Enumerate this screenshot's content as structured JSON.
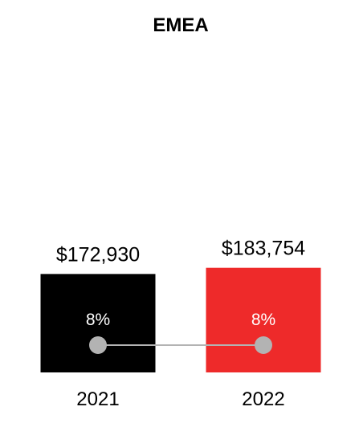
{
  "chart_data": {
    "type": "bar",
    "title": "EMEA",
    "categories": [
      "2021",
      "2022"
    ],
    "values": [
      172930,
      183754
    ],
    "value_labels": [
      "$172,930",
      "$183,754"
    ],
    "secondary": {
      "type": "line",
      "values": [
        8,
        8
      ],
      "labels": [
        "8%",
        "8%"
      ],
      "color": "#b3b3b3"
    },
    "bar_colors": [
      "#000000",
      "#ee2a2a"
    ],
    "ylim": [
      0,
      1200000
    ],
    "grid": false,
    "legend": "none",
    "xlabel": "",
    "ylabel": ""
  }
}
